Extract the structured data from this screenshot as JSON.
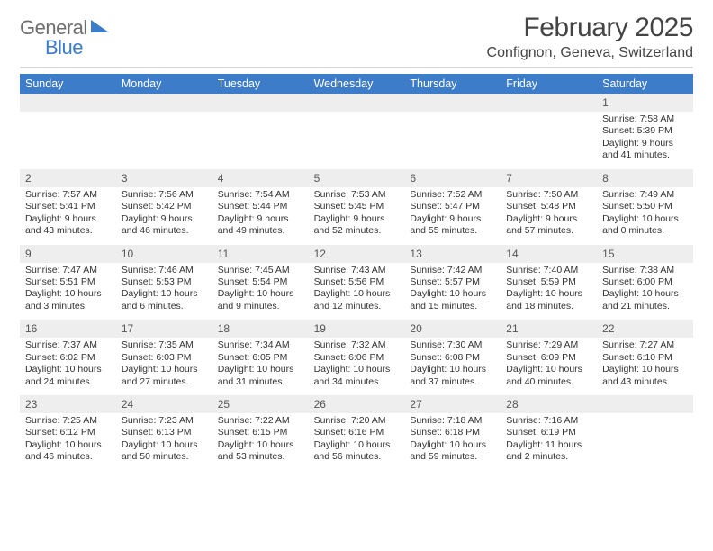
{
  "logo": {
    "general": "General",
    "blue": "Blue"
  },
  "title": "February 2025",
  "location": "Confignon, Geneva, Switzerland",
  "colors": {
    "header_bar": "#3d7cc9",
    "daynum_bg": "#eeeeee",
    "rule": "#d9d9d9",
    "text": "#333333",
    "logo_gray": "#6f6f6f",
    "logo_blue": "#3d7cc9"
  },
  "dow": [
    "Sunday",
    "Monday",
    "Tuesday",
    "Wednesday",
    "Thursday",
    "Friday",
    "Saturday"
  ],
  "weeks": [
    [
      {
        "n": "",
        "sr": "",
        "ss": "",
        "dl": ""
      },
      {
        "n": "",
        "sr": "",
        "ss": "",
        "dl": ""
      },
      {
        "n": "",
        "sr": "",
        "ss": "",
        "dl": ""
      },
      {
        "n": "",
        "sr": "",
        "ss": "",
        "dl": ""
      },
      {
        "n": "",
        "sr": "",
        "ss": "",
        "dl": ""
      },
      {
        "n": "",
        "sr": "",
        "ss": "",
        "dl": ""
      },
      {
        "n": "1",
        "sr": "Sunrise: 7:58 AM",
        "ss": "Sunset: 5:39 PM",
        "dl": "Daylight: 9 hours and 41 minutes."
      }
    ],
    [
      {
        "n": "2",
        "sr": "Sunrise: 7:57 AM",
        "ss": "Sunset: 5:41 PM",
        "dl": "Daylight: 9 hours and 43 minutes."
      },
      {
        "n": "3",
        "sr": "Sunrise: 7:56 AM",
        "ss": "Sunset: 5:42 PM",
        "dl": "Daylight: 9 hours and 46 minutes."
      },
      {
        "n": "4",
        "sr": "Sunrise: 7:54 AM",
        "ss": "Sunset: 5:44 PM",
        "dl": "Daylight: 9 hours and 49 minutes."
      },
      {
        "n": "5",
        "sr": "Sunrise: 7:53 AM",
        "ss": "Sunset: 5:45 PM",
        "dl": "Daylight: 9 hours and 52 minutes."
      },
      {
        "n": "6",
        "sr": "Sunrise: 7:52 AM",
        "ss": "Sunset: 5:47 PM",
        "dl": "Daylight: 9 hours and 55 minutes."
      },
      {
        "n": "7",
        "sr": "Sunrise: 7:50 AM",
        "ss": "Sunset: 5:48 PM",
        "dl": "Daylight: 9 hours and 57 minutes."
      },
      {
        "n": "8",
        "sr": "Sunrise: 7:49 AM",
        "ss": "Sunset: 5:50 PM",
        "dl": "Daylight: 10 hours and 0 minutes."
      }
    ],
    [
      {
        "n": "9",
        "sr": "Sunrise: 7:47 AM",
        "ss": "Sunset: 5:51 PM",
        "dl": "Daylight: 10 hours and 3 minutes."
      },
      {
        "n": "10",
        "sr": "Sunrise: 7:46 AM",
        "ss": "Sunset: 5:53 PM",
        "dl": "Daylight: 10 hours and 6 minutes."
      },
      {
        "n": "11",
        "sr": "Sunrise: 7:45 AM",
        "ss": "Sunset: 5:54 PM",
        "dl": "Daylight: 10 hours and 9 minutes."
      },
      {
        "n": "12",
        "sr": "Sunrise: 7:43 AM",
        "ss": "Sunset: 5:56 PM",
        "dl": "Daylight: 10 hours and 12 minutes."
      },
      {
        "n": "13",
        "sr": "Sunrise: 7:42 AM",
        "ss": "Sunset: 5:57 PM",
        "dl": "Daylight: 10 hours and 15 minutes."
      },
      {
        "n": "14",
        "sr": "Sunrise: 7:40 AM",
        "ss": "Sunset: 5:59 PM",
        "dl": "Daylight: 10 hours and 18 minutes."
      },
      {
        "n": "15",
        "sr": "Sunrise: 7:38 AM",
        "ss": "Sunset: 6:00 PM",
        "dl": "Daylight: 10 hours and 21 minutes."
      }
    ],
    [
      {
        "n": "16",
        "sr": "Sunrise: 7:37 AM",
        "ss": "Sunset: 6:02 PM",
        "dl": "Daylight: 10 hours and 24 minutes."
      },
      {
        "n": "17",
        "sr": "Sunrise: 7:35 AM",
        "ss": "Sunset: 6:03 PM",
        "dl": "Daylight: 10 hours and 27 minutes."
      },
      {
        "n": "18",
        "sr": "Sunrise: 7:34 AM",
        "ss": "Sunset: 6:05 PM",
        "dl": "Daylight: 10 hours and 31 minutes."
      },
      {
        "n": "19",
        "sr": "Sunrise: 7:32 AM",
        "ss": "Sunset: 6:06 PM",
        "dl": "Daylight: 10 hours and 34 minutes."
      },
      {
        "n": "20",
        "sr": "Sunrise: 7:30 AM",
        "ss": "Sunset: 6:08 PM",
        "dl": "Daylight: 10 hours and 37 minutes."
      },
      {
        "n": "21",
        "sr": "Sunrise: 7:29 AM",
        "ss": "Sunset: 6:09 PM",
        "dl": "Daylight: 10 hours and 40 minutes."
      },
      {
        "n": "22",
        "sr": "Sunrise: 7:27 AM",
        "ss": "Sunset: 6:10 PM",
        "dl": "Daylight: 10 hours and 43 minutes."
      }
    ],
    [
      {
        "n": "23",
        "sr": "Sunrise: 7:25 AM",
        "ss": "Sunset: 6:12 PM",
        "dl": "Daylight: 10 hours and 46 minutes."
      },
      {
        "n": "24",
        "sr": "Sunrise: 7:23 AM",
        "ss": "Sunset: 6:13 PM",
        "dl": "Daylight: 10 hours and 50 minutes."
      },
      {
        "n": "25",
        "sr": "Sunrise: 7:22 AM",
        "ss": "Sunset: 6:15 PM",
        "dl": "Daylight: 10 hours and 53 minutes."
      },
      {
        "n": "26",
        "sr": "Sunrise: 7:20 AM",
        "ss": "Sunset: 6:16 PM",
        "dl": "Daylight: 10 hours and 56 minutes."
      },
      {
        "n": "27",
        "sr": "Sunrise: 7:18 AM",
        "ss": "Sunset: 6:18 PM",
        "dl": "Daylight: 10 hours and 59 minutes."
      },
      {
        "n": "28",
        "sr": "Sunrise: 7:16 AM",
        "ss": "Sunset: 6:19 PM",
        "dl": "Daylight: 11 hours and 2 minutes."
      },
      {
        "n": "",
        "sr": "",
        "ss": "",
        "dl": ""
      }
    ]
  ]
}
